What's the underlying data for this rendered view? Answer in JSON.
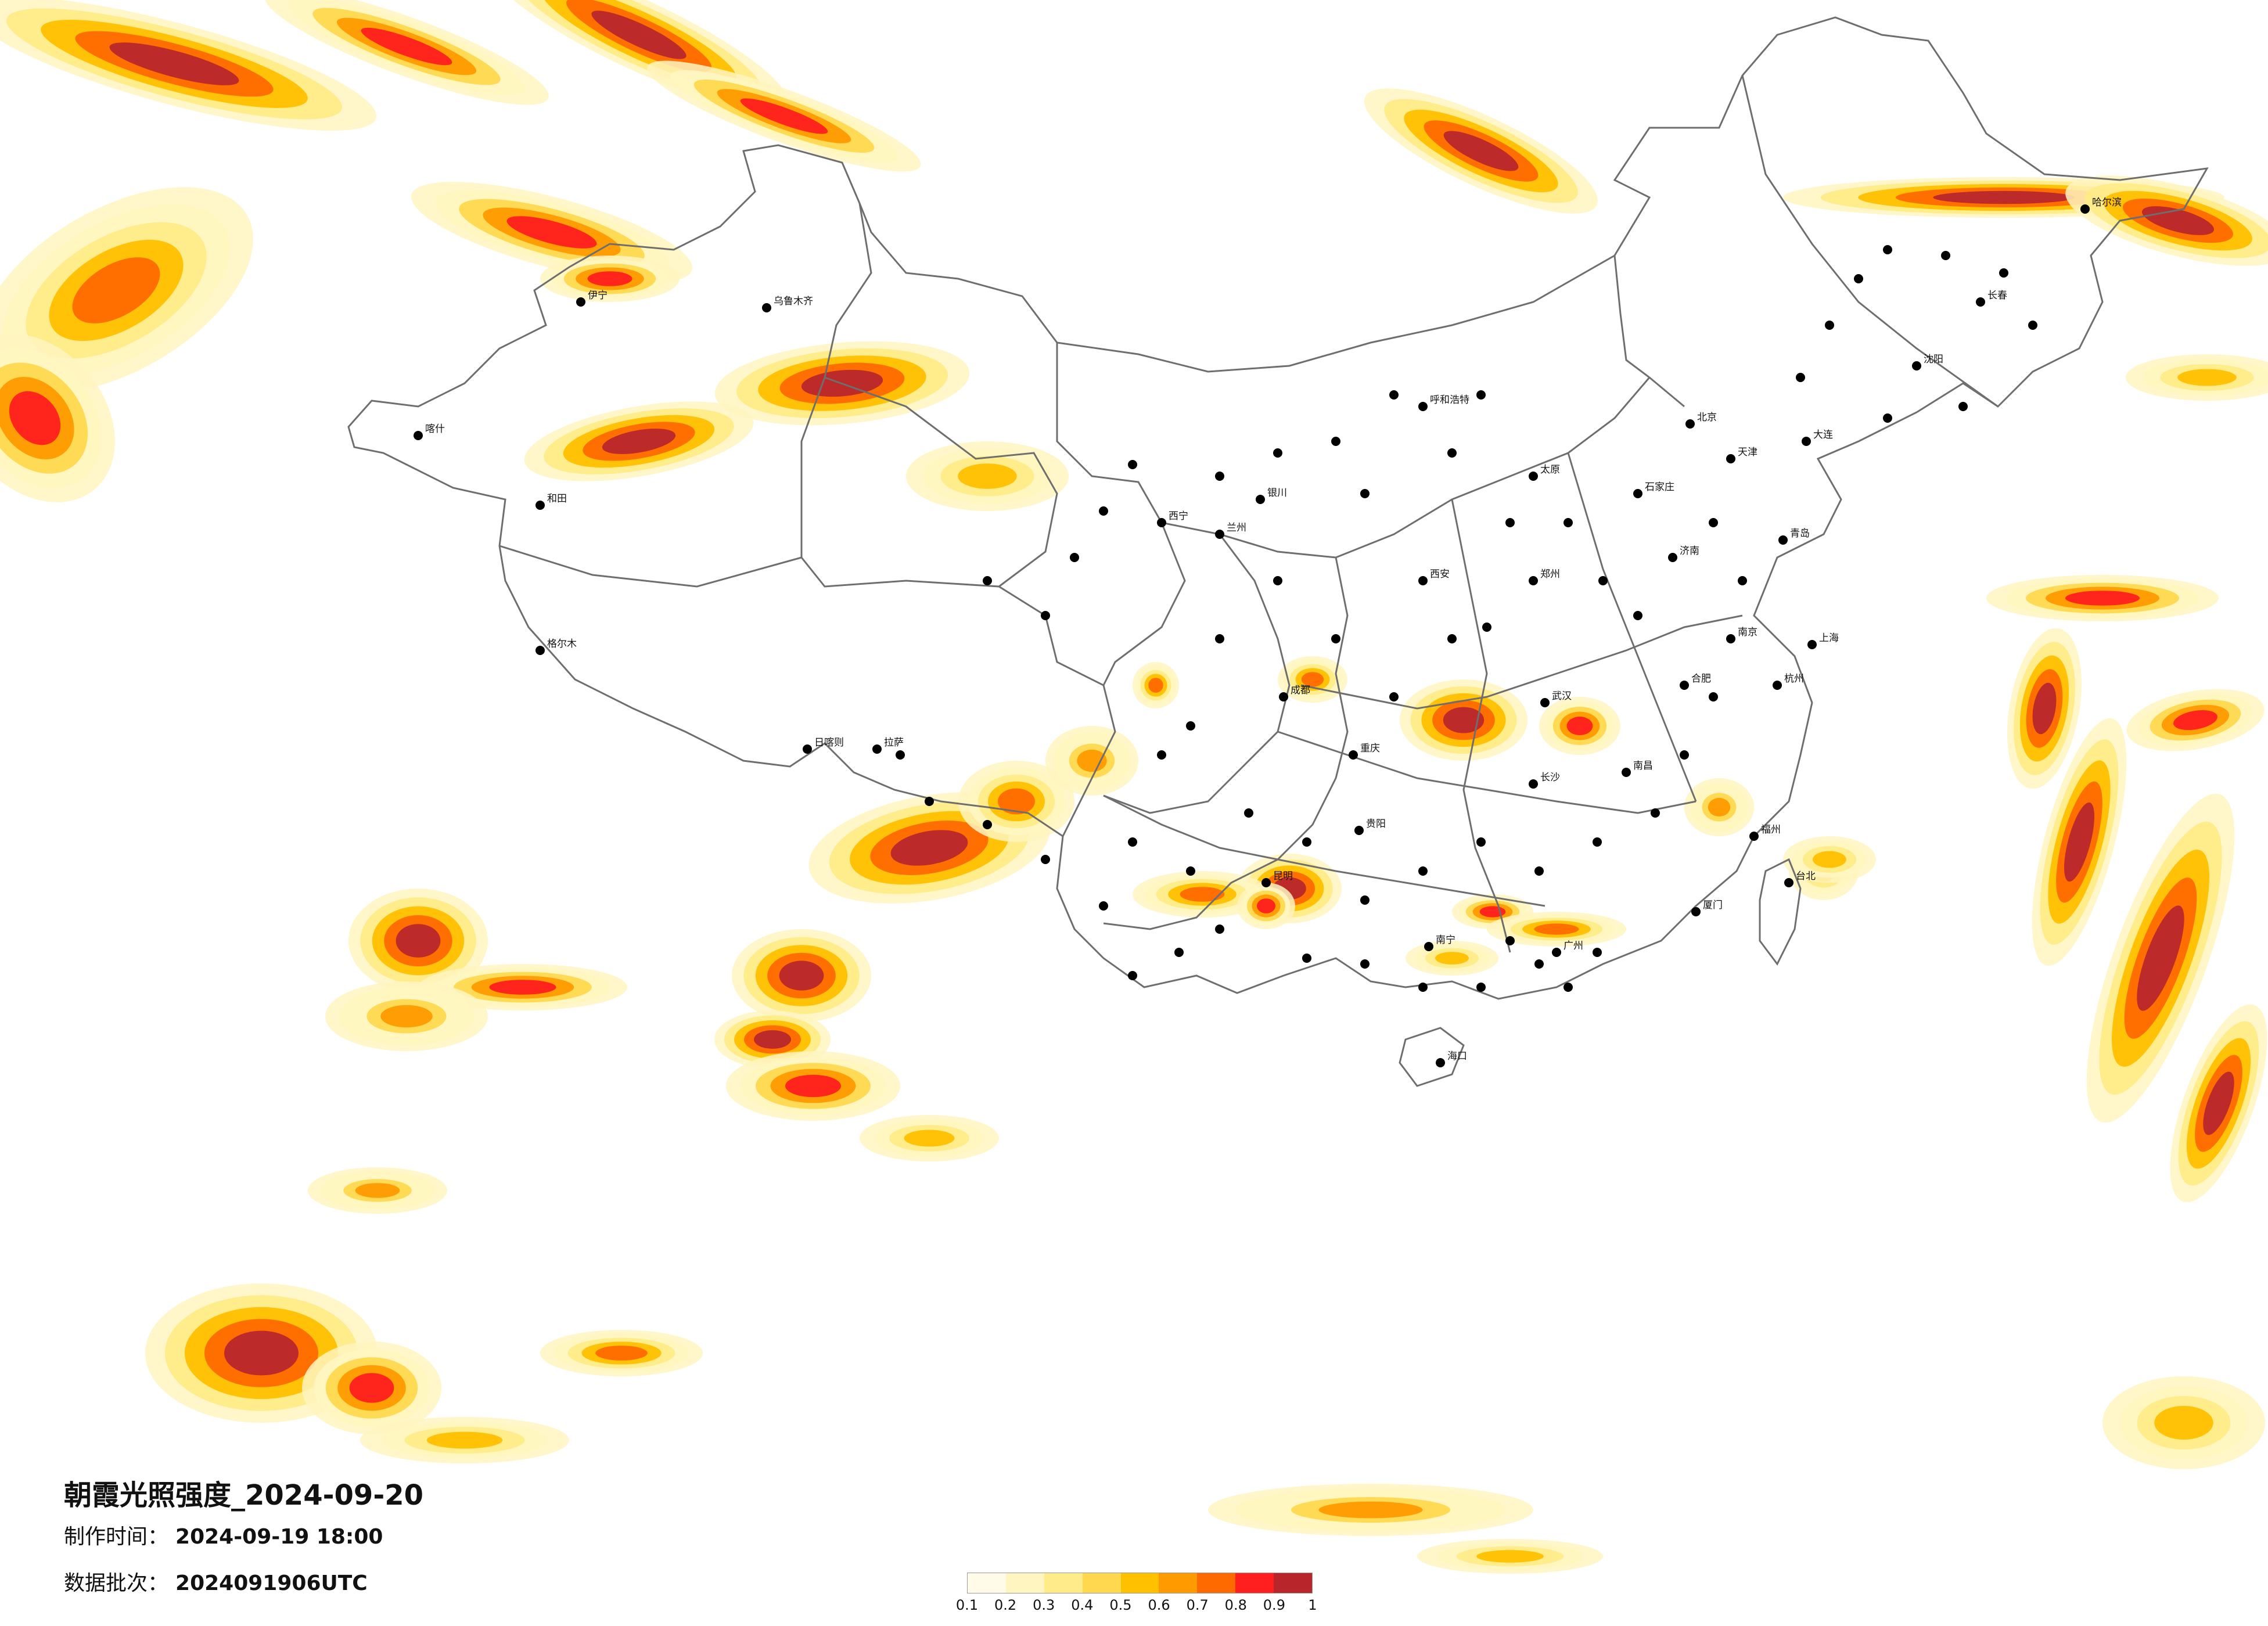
{
  "title": "朝霞光照强度_2024-09-20",
  "production_time": {
    "label": "制作时间：",
    "value": "2024-09-19 18:00"
  },
  "data_batch": {
    "label": "数据批次：",
    "value": "2024091906UTC"
  },
  "legend": {
    "ticks": [
      "0.1",
      "0.2",
      "0.3",
      "0.4",
      "0.5",
      "0.6",
      "0.7",
      "0.8",
      "0.9",
      "1"
    ],
    "colors": [
      "#fffbe8",
      "#fff5c0",
      "#ffeb88",
      "#ffd84f",
      "#ffc000",
      "#ff9a00",
      "#ff6a00",
      "#ff1f1f",
      "#b8262c"
    ]
  },
  "cities": [
    {
      "name": "哈尔滨"
    },
    {
      "name": "长春"
    },
    {
      "name": "沈阳"
    },
    {
      "name": "北京"
    },
    {
      "name": "天津"
    },
    {
      "name": "石家庄"
    },
    {
      "name": "太原"
    },
    {
      "name": "济南"
    },
    {
      "name": "郑州"
    },
    {
      "name": "西安"
    },
    {
      "name": "兰州"
    },
    {
      "name": "西宁"
    },
    {
      "name": "银川"
    },
    {
      "name": "呼和浩特"
    },
    {
      "name": "乌鲁木齐"
    },
    {
      "name": "拉萨"
    },
    {
      "name": "成都"
    },
    {
      "name": "重庆"
    },
    {
      "name": "贵阳"
    },
    {
      "name": "昆明"
    },
    {
      "name": "南宁"
    },
    {
      "name": "广州"
    },
    {
      "name": "长沙"
    },
    {
      "name": "武汉"
    },
    {
      "name": "南昌"
    },
    {
      "name": "福州"
    },
    {
      "name": "杭州"
    },
    {
      "name": "上海"
    },
    {
      "name": "南京"
    },
    {
      "name": "合肥"
    },
    {
      "name": "海口"
    },
    {
      "name": "台北"
    },
    {
      "name": "喀什"
    },
    {
      "name": "和田"
    },
    {
      "name": "伊宁"
    },
    {
      "name": "格尔木"
    },
    {
      "name": "日喀则"
    },
    {
      "name": "大连"
    },
    {
      "name": "青岛"
    },
    {
      "name": "厦门"
    }
  ]
}
